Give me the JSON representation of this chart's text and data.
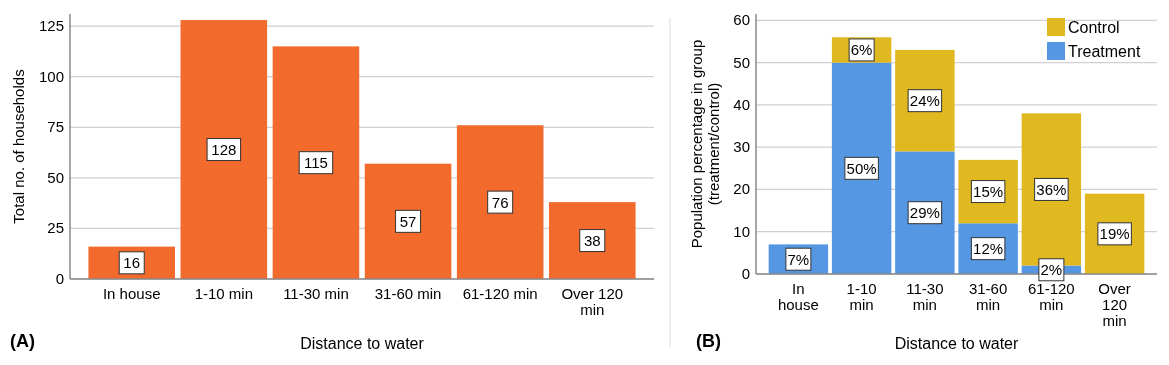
{
  "chart_data": [
    {
      "type": "bar",
      "ylabel": "Total no. of households",
      "xlabel": "Distance to water",
      "categories": [
        "In house",
        "1-10 min",
        "11-30 min",
        "31-60 min",
        "61-120 min",
        "Over 120 min"
      ],
      "values": [
        16,
        128,
        115,
        57,
        76,
        38
      ],
      "color": "#f26a2c",
      "ylim": [
        0,
        131
      ],
      "yticks": [
        0,
        25,
        50,
        75,
        100,
        125
      ],
      "grid": "y",
      "data_labels": true,
      "annotations": [
        "(A)"
      ]
    },
    {
      "type": "bar",
      "stacked": true,
      "ylabel": "Population percentage in group (treatment/control)",
      "xlabel": "Distance to water",
      "categories": [
        "In house",
        "1-10 min",
        "11-30 min",
        "31-60 min",
        "61-120 min",
        "Over 120 min"
      ],
      "series": [
        {
          "name": "Treatment",
          "color": "#5597e3",
          "values": [
            7,
            50,
            29,
            12,
            2,
            null
          ],
          "value_labels": [
            "7%",
            "50%",
            "29%",
            "12%",
            "2%",
            null
          ]
        },
        {
          "name": "Control",
          "color": "#e0b81f",
          "values": [
            null,
            6,
            24,
            15,
            36,
            19
          ],
          "value_labels": [
            null,
            "6%",
            "24%",
            "15%",
            "36%",
            "19%"
          ]
        }
      ],
      "ylim": [
        0,
        61.5
      ],
      "yticks": [
        0,
        10,
        20,
        30,
        40,
        50,
        60
      ],
      "grid": "y",
      "legend": "top right",
      "annotations": [
        "(B)"
      ]
    }
  ]
}
